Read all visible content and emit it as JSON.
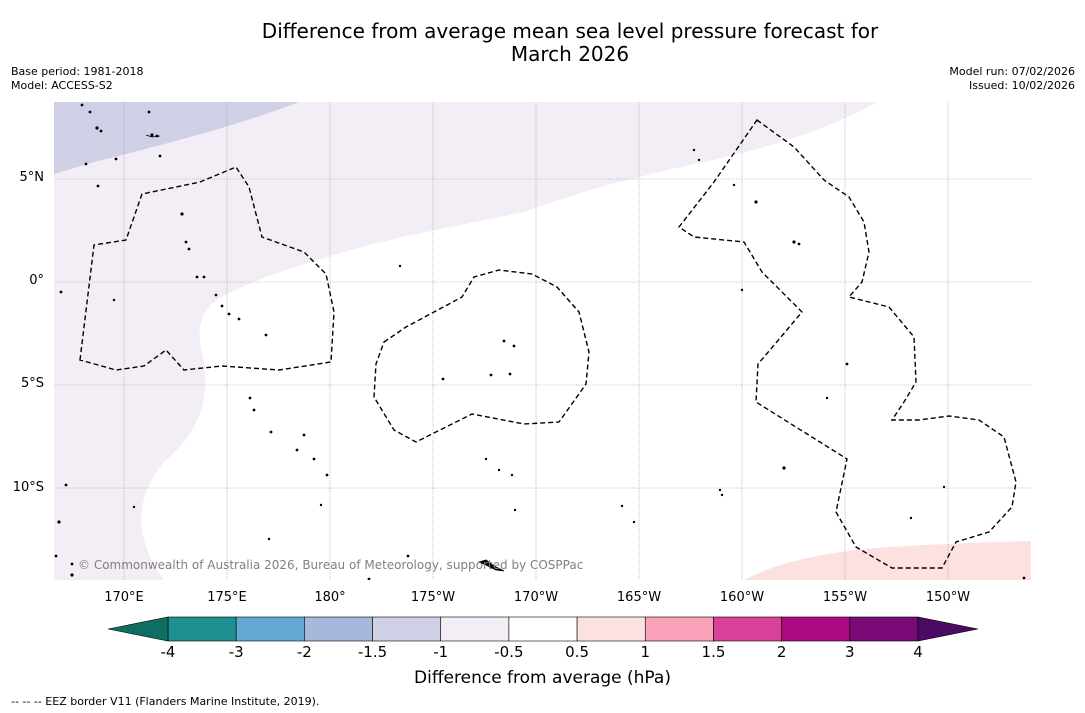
{
  "title_line1": "Difference from average mean sea level pressure forecast for",
  "title_line2": "March 2026",
  "meta_left": {
    "base_period": "Base period: 1981-2018",
    "model": "Model: ACCESS-S2"
  },
  "meta_right": {
    "model_run": "Model run: 07/02/2026",
    "issued": "Issued: 10/02/2026"
  },
  "latitude_labels": [
    "5°N",
    "0°",
    "5°S",
    "10°S"
  ],
  "longitude_labels": [
    "170°E",
    "175°E",
    "180°",
    "175°W",
    "170°W",
    "165°W",
    "160°W",
    "155°W",
    "150°W"
  ],
  "copyright": "© Commonwealth of Australia 2026, Bureau of Meteorology, supported by COSPPac",
  "colorbar": {
    "ticks": [
      "-4",
      "-3",
      "-2",
      "-1.5",
      "-1",
      "-0.5",
      "0.5",
      "1",
      "1.5",
      "2",
      "3",
      "4"
    ],
    "colors": [
      "#1f8f8f",
      "#64a8d2",
      "#a6b8dc",
      "#cfd0e6",
      "#f3edf6",
      "#ffffff",
      "#fde1e1",
      "#f9a1b8",
      "#d9429a",
      "#ad0a81",
      "#790a77"
    ],
    "under_color": "#0d6e61",
    "over_color": "#4b0a63",
    "label": "Difference from average (hPa)"
  },
  "footnote": "--  --  -- EEZ border V11 (Flanders Marine Institute, 2019)."
}
